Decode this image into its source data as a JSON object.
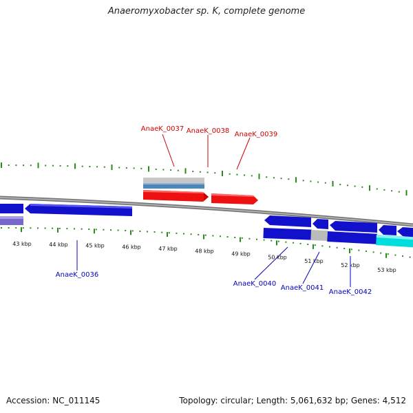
{
  "title": "Anaeromyxobacter sp. K, complete genome",
  "footer": {
    "accession_label": "Accession: NC_011145",
    "summary": "Topology: circular; Length: 5,061,632 bp; Genes: 4,512"
  },
  "colors": {
    "tick": "#2a8a1a",
    "forward_gene": "#ee1111",
    "reverse_gene": "#1111cc",
    "cyan_gene": "#00dddd",
    "grey_gene": "#bbbbbb",
    "lavender_gene": "#7766cc",
    "steelblue_gene": "#4f86b8",
    "backbone": "#888888",
    "label_red": "#cc0000",
    "label_blue": "#0000bb"
  },
  "axis": {
    "unit": "kbp",
    "ticks": [
      {
        "value": 43,
        "label": "43 kbp"
      },
      {
        "value": 44,
        "label": "44 kbp"
      },
      {
        "value": 45,
        "label": "45 kbp"
      },
      {
        "value": 46,
        "label": "46 kbp"
      },
      {
        "value": 47,
        "label": "47 kbp"
      },
      {
        "value": 48,
        "label": "48 kbp"
      },
      {
        "value": 49,
        "label": "49 kbp"
      },
      {
        "value": 50,
        "label": "50 kbp"
      },
      {
        "value": 51,
        "label": "51 kbp"
      },
      {
        "value": 52,
        "label": "52 kbp"
      },
      {
        "value": 53,
        "label": "53 kbp"
      }
    ]
  },
  "gene_labels": [
    {
      "name": "AnaeK_0036",
      "strand": "reverse"
    },
    {
      "name": "AnaeK_0037",
      "strand": "forward"
    },
    {
      "name": "AnaeK_0038",
      "strand": "forward"
    },
    {
      "name": "AnaeK_0039",
      "strand": "forward"
    },
    {
      "name": "AnaeK_0040",
      "strand": "reverse"
    },
    {
      "name": "AnaeK_0041",
      "strand": "reverse"
    },
    {
      "name": "AnaeK_0042",
      "strand": "reverse"
    }
  ]
}
